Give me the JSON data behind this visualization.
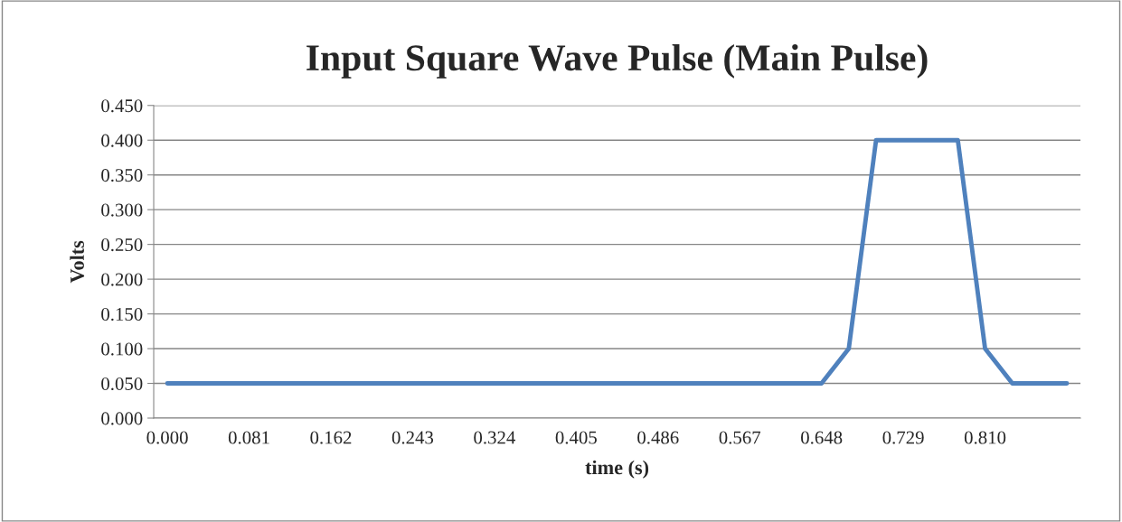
{
  "chart_data": {
    "type": "line",
    "title": "Input Square Wave Pulse (Main Pulse)",
    "xlabel": "time (s)",
    "ylabel": "Volts",
    "categories": [
      "0.000",
      null,
      null,
      "0.081",
      null,
      null,
      "0.162",
      null,
      null,
      "0.243",
      null,
      null,
      "0.324",
      null,
      null,
      "0.405",
      null,
      null,
      "0.486",
      null,
      null,
      "0.567",
      null,
      null,
      "0.648",
      null,
      null,
      "0.729",
      null,
      null,
      "0.810",
      null,
      null,
      null
    ],
    "series": [
      {
        "color": "#4f81bd",
        "values": [
          0.05,
          0.05,
          0.05,
          0.05,
          0.05,
          0.05,
          0.05,
          0.05,
          0.05,
          0.05,
          0.05,
          0.05,
          0.05,
          0.05,
          0.05,
          0.05,
          0.05,
          0.05,
          0.05,
          0.05,
          0.05,
          0.05,
          0.05,
          0.05,
          0.05,
          0.1,
          0.4,
          0.4,
          0.4,
          0.4,
          0.1,
          0.05,
          0.05,
          0.05
        ]
      }
    ],
    "ylim": [
      0,
      0.45
    ],
    "yticks": [
      {
        "value": 0,
        "label": "0.000"
      },
      {
        "value": 0.05,
        "label": "0.050"
      },
      {
        "value": 0.1,
        "label": "0.100"
      },
      {
        "value": 0.15,
        "label": "0.150"
      },
      {
        "value": 0.2,
        "label": "0.200"
      },
      {
        "value": 0.25,
        "label": "0.250"
      },
      {
        "value": 0.3,
        "label": "0.300"
      },
      {
        "value": 0.35,
        "label": "0.350"
      },
      {
        "value": 0.4,
        "label": "0.400"
      },
      {
        "value": 0.45,
        "label": "0.450"
      }
    ],
    "grid": "y",
    "legend": false,
    "marker": "none",
    "line_style": "solid"
  }
}
